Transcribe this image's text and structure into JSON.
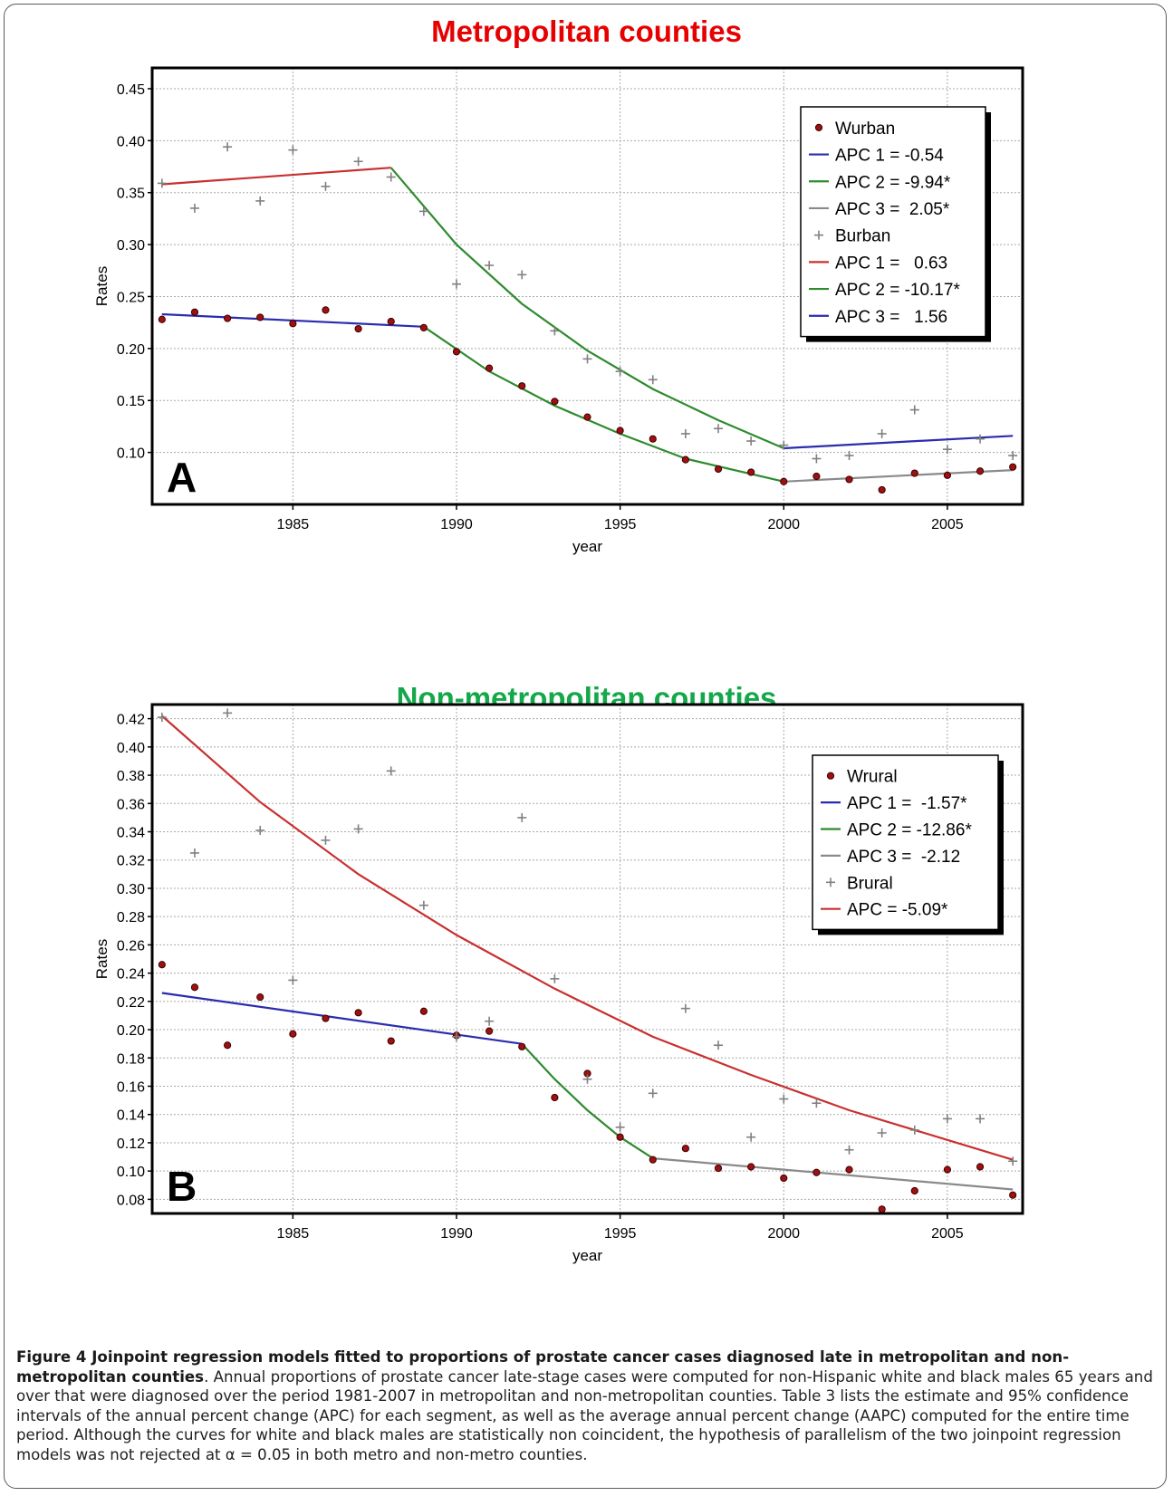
{
  "figure": {
    "caption_title": "Figure 4 Joinpoint regression models fitted to proportions of prostate cancer cases diagnosed late in metropolitan and non-metropolitan counties",
    "caption_text": ". Annual proportions of prostate cancer late-stage cases were computed for non-Hispanic white and black males 65 years and over that were diagnosed over the period 1981-2007 in metropolitan and non-metropolitan counties. Table 3 lists the estimate and 95% confidence intervals of the annual percent change (APC) for each segment, as well as the average annual percent change (AAPC) computed for the entire time period. Although the curves for white and black males are statistically non coincident, the hypothesis of parallelism of the two joinpoint regression models was not rejected at α = 0.05 in both metro and non-metro counties."
  },
  "chart_data": [
    {
      "type": "scatter",
      "panel_label": "A",
      "title": "Metropolitan counties",
      "title_color": "#e60000",
      "xlabel": "year",
      "ylabel": "Rates",
      "xlim": [
        1980.7,
        2007.3
      ],
      "ylim": [
        0.05,
        0.47
      ],
      "x_ticks": [
        1985,
        1990,
        1995,
        2000,
        2005
      ],
      "y_ticks": [
        0.1,
        0.15,
        0.2,
        0.25,
        0.3,
        0.35,
        0.4,
        0.45
      ],
      "y_tick_labels": [
        "0.10",
        "0.15",
        "0.20",
        "0.25",
        "0.30",
        "0.35",
        "0.40",
        "0.45"
      ],
      "grid": true,
      "legend_position": "top-right",
      "legend": [
        {
          "label": "Wurban",
          "kind": "dot",
          "color": "#7a0000"
        },
        {
          "label": "APC 1 = -0.54",
          "kind": "line",
          "color": "#2b2bb0"
        },
        {
          "label": "APC 2 = -9.94*",
          "kind": "line",
          "color": "#2e8b2e"
        },
        {
          "label": "APC 3 =  2.05*",
          "kind": "line",
          "color": "#8a8a8a"
        },
        {
          "label": "Burban",
          "kind": "plus",
          "color": "#808080"
        },
        {
          "label": "APC 1 =   0.63",
          "kind": "line",
          "color": "#c83030"
        },
        {
          "label": "APC 2 = -10.17*",
          "kind": "line",
          "color": "#2e8b2e"
        },
        {
          "label": "APC 3 =   1.56",
          "kind": "line",
          "color": "#2b2bb0"
        }
      ],
      "series": [
        {
          "name": "Wurban",
          "kind": "points",
          "marker": "dot",
          "color": "#7a0000",
          "x": [
            1981,
            1982,
            1983,
            1984,
            1985,
            1986,
            1987,
            1988,
            1989,
            1990,
            1991,
            1992,
            1993,
            1994,
            1995,
            1996,
            1997,
            1998,
            1999,
            2000,
            2001,
            2002,
            2003,
            2004,
            2005,
            2006,
            2007
          ],
          "y": [
            0.228,
            0.235,
            0.229,
            0.23,
            0.224,
            0.237,
            0.219,
            0.226,
            0.22,
            0.197,
            0.181,
            0.164,
            0.149,
            0.134,
            0.121,
            0.113,
            0.093,
            0.084,
            0.081,
            0.072,
            0.077,
            0.074,
            0.064,
            0.08,
            0.078,
            0.082,
            0.086
          ]
        },
        {
          "name": "Burban",
          "kind": "points",
          "marker": "plus",
          "color": "#808080",
          "x": [
            1981,
            1982,
            1983,
            1984,
            1985,
            1986,
            1987,
            1988,
            1989,
            1990,
            1991,
            1992,
            1993,
            1994,
            1995,
            1996,
            1997,
            1998,
            1999,
            2000,
            2001,
            2002,
            2003,
            2004,
            2005,
            2006,
            2007
          ],
          "y": [
            0.359,
            0.335,
            0.394,
            0.342,
            0.391,
            0.356,
            0.38,
            0.365,
            0.332,
            0.262,
            0.28,
            0.271,
            0.217,
            0.19,
            0.178,
            0.17,
            0.118,
            0.123,
            0.111,
            0.107,
            0.094,
            0.097,
            0.118,
            0.141,
            0.103,
            0.113,
            0.097
          ]
        },
        {
          "name": "APC 1 = -0.54",
          "kind": "line",
          "color": "#2b2bb0",
          "x": [
            1981,
            1989
          ],
          "y": [
            0.233,
            0.221
          ]
        },
        {
          "name": "APC 2 = -9.94*",
          "kind": "line",
          "color": "#2e8b2e",
          "x": [
            1989,
            1991,
            1993,
            1995,
            1997,
            2000
          ],
          "y": [
            0.221,
            0.178,
            0.145,
            0.118,
            0.094,
            0.072
          ]
        },
        {
          "name": "APC 3 =  2.05*",
          "kind": "line",
          "color": "#8a8a8a",
          "x": [
            2000,
            2007
          ],
          "y": [
            0.072,
            0.083
          ]
        },
        {
          "name": "APC 1 =   0.63",
          "kind": "line",
          "color": "#c83030",
          "x": [
            1981,
            1988
          ],
          "y": [
            0.358,
            0.374
          ]
        },
        {
          "name": "APC 2 = -10.17*",
          "kind": "line",
          "color": "#2e8b2e",
          "x": [
            1988,
            1990,
            1992,
            1994,
            1996,
            1998,
            2000
          ],
          "y": [
            0.374,
            0.3,
            0.243,
            0.198,
            0.161,
            0.131,
            0.104
          ]
        },
        {
          "name": "APC 3 =   1.56",
          "kind": "line",
          "color": "#2b2bb0",
          "x": [
            2000,
            2007
          ],
          "y": [
            0.104,
            0.116
          ]
        }
      ]
    },
    {
      "type": "scatter",
      "panel_label": "B",
      "title": "Non-metropolitan counties",
      "title_color": "#14a84a",
      "xlabel": "year",
      "ylabel": "Rates",
      "xlim": [
        1980.7,
        2007.3
      ],
      "ylim": [
        0.07,
        0.43
      ],
      "x_ticks": [
        1985,
        1990,
        1995,
        2000,
        2005
      ],
      "y_ticks": [
        0.08,
        0.1,
        0.12,
        0.14,
        0.16,
        0.18,
        0.2,
        0.22,
        0.24,
        0.26,
        0.28,
        0.3,
        0.32,
        0.34,
        0.36,
        0.38,
        0.4,
        0.42
      ],
      "y_tick_labels": [
        "0.08",
        "0.10",
        "0.12",
        "0.14",
        "0.16",
        "0.18",
        "0.20",
        "0.22",
        "0.24",
        "0.26",
        "0.28",
        "0.30",
        "0.32",
        "0.34",
        "0.36",
        "0.38",
        "0.40",
        "0.42"
      ],
      "grid": true,
      "legend_position": "top-right",
      "legend": [
        {
          "label": "Wrural",
          "kind": "dot",
          "color": "#7a0000"
        },
        {
          "label": "APC 1 =  -1.57*",
          "kind": "line",
          "color": "#2b2bb0"
        },
        {
          "label": "APC 2 = -12.86*",
          "kind": "line",
          "color": "#2e8b2e"
        },
        {
          "label": "APC 3 =  -2.12",
          "kind": "line",
          "color": "#8a8a8a"
        },
        {
          "label": "Brural",
          "kind": "plus",
          "color": "#808080"
        },
        {
          "label": "APC = -5.09*",
          "kind": "line",
          "color": "#c83030"
        }
      ],
      "series": [
        {
          "name": "Wrural",
          "kind": "points",
          "marker": "dot",
          "color": "#7a0000",
          "x": [
            1981,
            1982,
            1983,
            1984,
            1985,
            1986,
            1987,
            1988,
            1989,
            1990,
            1991,
            1992,
            1993,
            1994,
            1995,
            1996,
            1997,
            1998,
            1999,
            2000,
            2001,
            2002,
            2003,
            2004,
            2005,
            2006,
            2007
          ],
          "y": [
            0.246,
            0.23,
            0.189,
            0.223,
            0.197,
            0.208,
            0.212,
            0.192,
            0.213,
            0.196,
            0.199,
            0.188,
            0.152,
            0.169,
            0.124,
            0.108,
            0.116,
            0.102,
            0.103,
            0.095,
            0.099,
            0.101,
            0.073,
            0.086,
            0.101,
            0.103,
            0.083
          ]
        },
        {
          "name": "Brural",
          "kind": "points",
          "marker": "plus",
          "color": "#808080",
          "x": [
            1981,
            1982,
            1983,
            1984,
            1985,
            1986,
            1987,
            1988,
            1989,
            1990,
            1991,
            1992,
            1993,
            1994,
            1995,
            1996,
            1997,
            1998,
            1999,
            2000,
            2001,
            2002,
            2003,
            2004,
            2005,
            2006,
            2007
          ],
          "y": [
            0.421,
            0.325,
            0.424,
            0.341,
            0.235,
            0.334,
            0.342,
            0.383,
            0.288,
            0.195,
            0.206,
            0.35,
            0.236,
            0.165,
            0.131,
            0.155,
            0.215,
            0.189,
            0.124,
            0.151,
            0.148,
            0.115,
            0.127,
            0.129,
            0.137,
            0.137,
            0.107
          ]
        },
        {
          "name": "APC 1 =  -1.57*",
          "kind": "line",
          "color": "#2b2bb0",
          "x": [
            1981,
            1992
          ],
          "y": [
            0.226,
            0.19
          ]
        },
        {
          "name": "APC 2 = -12.86*",
          "kind": "line",
          "color": "#2e8b2e",
          "x": [
            1992,
            1993,
            1994,
            1995,
            1996
          ],
          "y": [
            0.19,
            0.165,
            0.143,
            0.124,
            0.109
          ]
        },
        {
          "name": "APC 3 =  -2.12",
          "kind": "line",
          "color": "#8a8a8a",
          "x": [
            1996,
            2007
          ],
          "y": [
            0.109,
            0.087
          ]
        },
        {
          "name": "APC = -5.09*",
          "kind": "line",
          "color": "#c83030",
          "x": [
            1981,
            1984,
            1987,
            1990,
            1993,
            1996,
            1999,
            2002,
            2005,
            2007
          ],
          "y": [
            0.422,
            0.361,
            0.31,
            0.267,
            0.229,
            0.195,
            0.168,
            0.143,
            0.122,
            0.108
          ]
        }
      ]
    }
  ]
}
